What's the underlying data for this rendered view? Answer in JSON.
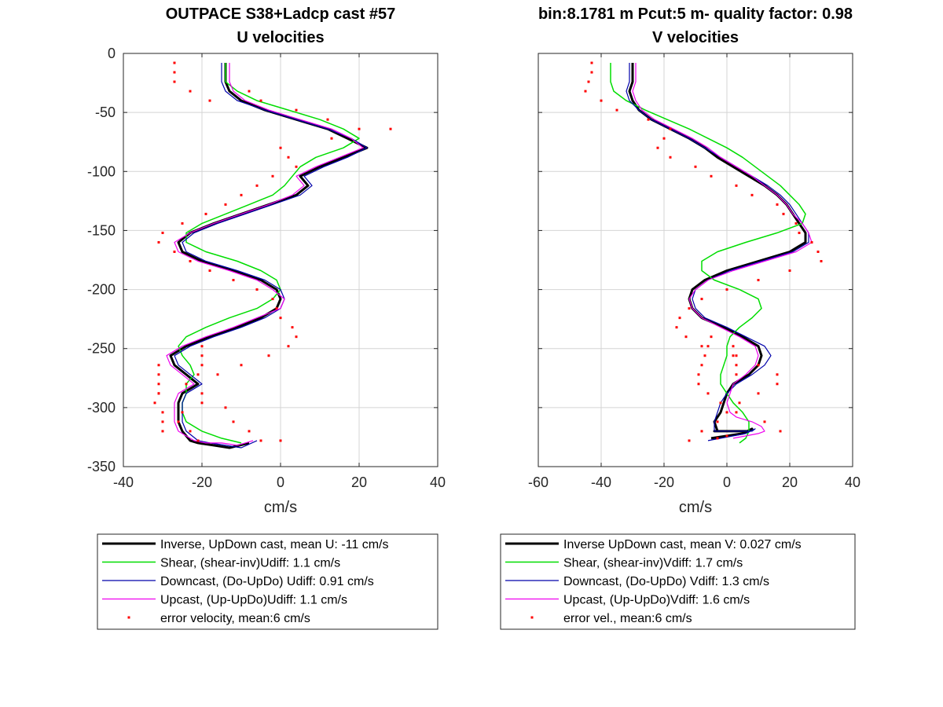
{
  "chart_data": [
    {
      "type": "line",
      "title": "OUTPACE S38+Ladcp cast #57",
      "subtitle": "U velocities",
      "xlabel": "cm/s",
      "ylabel": "",
      "xlim": [
        -40,
        40
      ],
      "ylim": [
        -350,
        0
      ],
      "xticks": [
        -40,
        -20,
        0,
        20,
        40
      ],
      "yticks": [
        0,
        -50,
        -100,
        -150,
        -200,
        -250,
        -300,
        -350
      ],
      "grid": true,
      "legend_position": "bottom",
      "series": [
        {
          "name": "Inverse, UpDown cast, mean U:  -11 cm/s",
          "color": "#000000",
          "width": 3,
          "x": [
            -14,
            -14,
            -14,
            -13,
            -10,
            -4,
            4,
            12,
            17,
            22,
            16,
            10,
            5,
            7,
            4,
            -3,
            -10,
            -17,
            -23,
            -26,
            -25,
            -20,
            -12,
            -5,
            -1,
            0,
            -1,
            -5,
            -11,
            -18,
            -24,
            -28,
            -27,
            -24,
            -21,
            -25,
            -26,
            -26,
            -26,
            -25,
            -23,
            -21,
            -17,
            -13,
            -8
          ],
          "y": [
            -8,
            -16,
            -24,
            -32,
            -40,
            -48,
            -56,
            -64,
            -72,
            -80,
            -88,
            -96,
            -104,
            -112,
            -120,
            -128,
            -136,
            -144,
            -152,
            -160,
            -168,
            -176,
            -184,
            -192,
            -200,
            -208,
            -216,
            -224,
            -232,
            -240,
            -248,
            -256,
            -264,
            -272,
            -280,
            -288,
            -296,
            -304,
            -312,
            -320,
            -328,
            -330,
            -332,
            -334,
            -330
          ]
        },
        {
          "name": "Shear, (shear-inv)Udiff:  1.1 cm/s",
          "color": "#00dd00",
          "width": 1.5,
          "x": [
            -14,
            -14,
            -14,
            -11,
            -6,
            2,
            10,
            16,
            20,
            16,
            9,
            5,
            3,
            1,
            -2,
            -8,
            -14,
            -20,
            -24,
            -24,
            -19,
            -11,
            -5,
            -1,
            0,
            -2,
            -6,
            -13,
            -19,
            -24,
            -26,
            -25,
            -23,
            -22,
            -24,
            -24,
            -25,
            -25,
            -24,
            -20,
            -15,
            -10
          ],
          "y": [
            -8,
            -16,
            -24,
            -32,
            -40,
            -48,
            -56,
            -64,
            -72,
            -80,
            -88,
            -96,
            -104,
            -112,
            -120,
            -128,
            -136,
            -144,
            -152,
            -160,
            -168,
            -176,
            -184,
            -192,
            -200,
            -208,
            -216,
            -224,
            -232,
            -240,
            -248,
            -256,
            -264,
            -272,
            -280,
            -288,
            -296,
            -304,
            -312,
            -320,
            -326,
            -330
          ]
        },
        {
          "name": "Downcast, (Do-UpDo) Udiff:  0.91 cm/s",
          "color": "#0000aa",
          "width": 1.2,
          "x": [
            -15,
            -15,
            -15,
            -14,
            -11,
            -4,
            4,
            12,
            18,
            22,
            17,
            11,
            6,
            8,
            5,
            -2,
            -9,
            -16,
            -22,
            -25,
            -24,
            -19,
            -11,
            -4,
            0,
            1,
            0,
            -4,
            -10,
            -17,
            -23,
            -27,
            -26,
            -23,
            -20,
            -24,
            -25,
            -25,
            -25,
            -24,
            -21,
            -18,
            -14,
            -10,
            -6
          ],
          "y": [
            -8,
            -16,
            -24,
            -32,
            -40,
            -48,
            -56,
            -64,
            -72,
            -80,
            -88,
            -96,
            -104,
            -112,
            -120,
            -128,
            -136,
            -144,
            -152,
            -160,
            -168,
            -176,
            -184,
            -192,
            -200,
            -208,
            -216,
            -224,
            -232,
            -240,
            -248,
            -256,
            -264,
            -272,
            -280,
            -288,
            -296,
            -304,
            -312,
            -320,
            -328,
            -330,
            -332,
            -334,
            -328
          ]
        },
        {
          "name": "Upcast, (Up-UpDo)Udiff:  1.1 cm/s",
          "color": "#ee00ee",
          "width": 1.2,
          "x": [
            -13,
            -13,
            -13,
            -12,
            -9,
            -3,
            5,
            13,
            18,
            21,
            15,
            9,
            4,
            6,
            3,
            -3,
            -10,
            -17,
            -23,
            -27,
            -26,
            -21,
            -13,
            -6,
            -2,
            1,
            0,
            -6,
            -12,
            -19,
            -25,
            -29,
            -28,
            -25,
            -22,
            -26,
            -27,
            -27,
            -27,
            -26,
            -22,
            -19,
            -15,
            -11,
            -7
          ],
          "y": [
            -8,
            -16,
            -24,
            -32,
            -40,
            -48,
            -56,
            -64,
            -72,
            -80,
            -88,
            -96,
            -104,
            -112,
            -120,
            -128,
            -136,
            -144,
            -152,
            -160,
            -168,
            -176,
            -184,
            -192,
            -200,
            -208,
            -216,
            -224,
            -232,
            -240,
            -248,
            -256,
            -264,
            -272,
            -280,
            -288,
            -296,
            -304,
            -312,
            -320,
            -328,
            -330,
            -330,
            -332,
            -328
          ]
        },
        {
          "name": "error velocity, mean:6 cm/s",
          "color": "#ff0000",
          "marker": "dot",
          "x": [
            -27,
            -27,
            -27,
            -23,
            -18,
            -8,
            -5,
            4,
            12,
            20,
            28,
            13,
            0,
            2,
            4,
            -2,
            -6,
            -10,
            -14,
            -19,
            -25,
            -30,
            -31,
            -27,
            -23,
            -18,
            -12,
            -6,
            -2,
            -1,
            0,
            3,
            4,
            2,
            -3,
            -10,
            -16,
            -24,
            -31,
            -32,
            -30,
            -26,
            -23,
            -21,
            -20,
            -20,
            -20,
            -21,
            -31,
            -31,
            -31,
            -31,
            -20,
            -20,
            -25,
            -30,
            -30,
            -14,
            -12,
            -8,
            -5,
            0
          ],
          "y": [
            -8,
            -16,
            -24,
            -32,
            -40,
            -32,
            -40,
            -48,
            -56,
            -64,
            -64,
            -72,
            -80,
            -88,
            -96,
            -104,
            -112,
            -120,
            -128,
            -136,
            -144,
            -152,
            -160,
            -168,
            -176,
            -184,
            -192,
            -200,
            -208,
            -216,
            -224,
            -232,
            -240,
            -248,
            -256,
            -264,
            -272,
            -280,
            -288,
            -296,
            -304,
            -312,
            -320,
            -328,
            -248,
            -256,
            -264,
            -272,
            -264,
            -272,
            -280,
            -288,
            -288,
            -296,
            -304,
            -312,
            -320,
            -300,
            -312,
            -320,
            -328,
            -328
          ]
        }
      ]
    },
    {
      "type": "line",
      "title": "bin:8.1781 m  Pcut:5 m- quality factor:  0.98",
      "subtitle": "V velocities",
      "xlabel": "cm/s",
      "ylabel": "",
      "xlim": [
        -60,
        40
      ],
      "ylim": [
        -350,
        0
      ],
      "xticks": [
        -60,
        -40,
        -20,
        0,
        20,
        40
      ],
      "yticks": [
        0,
        -50,
        -100,
        -150,
        -200,
        -250,
        -300,
        -350
      ],
      "grid": true,
      "legend_position": "bottom",
      "series": [
        {
          "name": "Inverse UpDown cast, mean V:  0.027 cm/s",
          "color": "#000000",
          "width": 3,
          "x": [
            -30,
            -30,
            -30,
            -31,
            -30,
            -28,
            -24,
            -18,
            -12,
            -7,
            -3,
            2,
            7,
            12,
            16,
            19,
            21,
            23,
            25,
            25,
            20,
            10,
            0,
            -7,
            -11,
            -12,
            -11,
            -8,
            -1,
            5,
            10,
            11,
            10,
            7,
            2,
            0,
            -1,
            -2,
            -4,
            -3,
            -3,
            -3,
            -4,
            -3,
            -2,
            1,
            4,
            7,
            8,
            5,
            0,
            -5
          ],
          "y": [
            -8,
            -16,
            -24,
            -32,
            -40,
            -48,
            -56,
            -64,
            -72,
            -80,
            -88,
            -96,
            -104,
            -112,
            -120,
            -128,
            -136,
            -144,
            -152,
            -160,
            -168,
            -176,
            -184,
            -192,
            -200,
            -208,
            -216,
            -224,
            -232,
            -240,
            -248,
            -256,
            -264,
            -272,
            -280,
            -288,
            -296,
            -304,
            -312,
            -320,
            -320,
            -320,
            -320,
            -320,
            -320,
            -320,
            -320,
            -320,
            -318,
            -322,
            -324,
            -326
          ]
        },
        {
          "name": "Shear, (shear-inv)Vdiff:  1.7 cm/s",
          "color": "#00dd00",
          "width": 1.5,
          "x": [
            -37,
            -37,
            -37,
            -36,
            -32,
            -26,
            -19,
            -12,
            -6,
            0,
            5,
            9,
            13,
            17,
            20,
            23,
            25,
            24,
            16,
            6,
            -3,
            -8,
            -8,
            -4,
            4,
            10,
            11,
            8,
            4,
            1,
            0,
            0,
            -1,
            -2,
            -2,
            0,
            2,
            5,
            7,
            7,
            6,
            4
          ],
          "y": [
            -8,
            -16,
            -24,
            -32,
            -40,
            -48,
            -56,
            -64,
            -72,
            -80,
            -88,
            -96,
            -104,
            -112,
            -120,
            -128,
            -136,
            -144,
            -152,
            -160,
            -168,
            -176,
            -184,
            -192,
            -200,
            -208,
            -216,
            -224,
            -232,
            -240,
            -248,
            -256,
            -264,
            -272,
            -280,
            -288,
            -296,
            -304,
            -312,
            -320,
            -326,
            -330
          ]
        },
        {
          "name": "Downcast, (Do-UpDo) Vdiff:  1.3 cm/s",
          "color": "#0000aa",
          "width": 1.2,
          "x": [
            -31,
            -31,
            -31,
            -32,
            -31,
            -28,
            -24,
            -18,
            -12,
            -7,
            -2,
            3,
            8,
            13,
            17,
            20,
            22,
            24,
            26,
            26,
            21,
            11,
            1,
            -6,
            -10,
            -11,
            -10,
            -7,
            0,
            6,
            12,
            14,
            12,
            8,
            3,
            0,
            -2,
            -3,
            -4,
            -4,
            -4,
            -3,
            -1,
            2,
            5,
            8,
            9,
            6,
            0,
            -6
          ],
          "y": [
            -8,
            -16,
            -24,
            -32,
            -40,
            -48,
            -56,
            -64,
            -72,
            -80,
            -88,
            -96,
            -104,
            -112,
            -120,
            -128,
            -136,
            -144,
            -152,
            -160,
            -168,
            -176,
            -184,
            -192,
            -200,
            -208,
            -216,
            -224,
            -232,
            -240,
            -248,
            -256,
            -264,
            -272,
            -280,
            -288,
            -296,
            -304,
            -312,
            -320,
            -320,
            -320,
            -320,
            -320,
            -320,
            -320,
            -318,
            -322,
            -325,
            -328
          ]
        },
        {
          "name": "Upcast, (Up-UpDo)Vdiff:  1.6 cm/s",
          "color": "#ee00ee",
          "width": 1.2,
          "x": [
            -29,
            -29,
            -29,
            -30,
            -29,
            -27,
            -23,
            -17,
            -11,
            -6,
            -2,
            3,
            8,
            12,
            16,
            19,
            21,
            24,
            26,
            27,
            22,
            12,
            2,
            -6,
            -10,
            -12,
            -11,
            -8,
            -2,
            4,
            9,
            10,
            9,
            6,
            2,
            1,
            0,
            1,
            3,
            8,
            11,
            12,
            10,
            6,
            2
          ],
          "y": [
            -8,
            -16,
            -24,
            -32,
            -40,
            -48,
            -56,
            -64,
            -72,
            -80,
            -88,
            -96,
            -104,
            -112,
            -120,
            -128,
            -136,
            -144,
            -152,
            -160,
            -168,
            -176,
            -184,
            -192,
            -200,
            -208,
            -216,
            -224,
            -232,
            -240,
            -248,
            -256,
            -264,
            -272,
            -280,
            -288,
            -296,
            -304,
            -308,
            -312,
            -316,
            -320,
            -322,
            -324,
            -326
          ]
        },
        {
          "name": "error vel., mean:6 cm/s",
          "color": "#ff0000",
          "marker": "dot",
          "x": [
            -43,
            -43,
            -44,
            -45,
            -40,
            -35,
            -25,
            -18,
            -20,
            -22,
            -18,
            -10,
            -5,
            3,
            8,
            16,
            18,
            22,
            23,
            27,
            29,
            30,
            20,
            10,
            0,
            -8,
            -12,
            -15,
            -16,
            -13,
            -8,
            2,
            10,
            16,
            16,
            10,
            4,
            0,
            -3,
            -5,
            -6,
            -7,
            -8,
            -9,
            -9,
            -6,
            -2,
            3,
            12,
            17,
            -8,
            -12,
            -3,
            0,
            2,
            3,
            3,
            3
          ],
          "y": [
            -8,
            -16,
            -24,
            -32,
            -40,
            -48,
            -56,
            -64,
            -72,
            -80,
            -88,
            -96,
            -104,
            -112,
            -120,
            -128,
            -136,
            -144,
            -152,
            -160,
            -168,
            -176,
            -184,
            -192,
            -200,
            -208,
            -216,
            -224,
            -232,
            -240,
            -248,
            -256,
            -264,
            -272,
            -280,
            -288,
            -296,
            -304,
            -312,
            -240,
            -248,
            -256,
            -264,
            -272,
            -280,
            -288,
            -296,
            -304,
            -312,
            -320,
            -320,
            -328,
            -326,
            -324,
            -248,
            -256,
            -264,
            -272
          ]
        }
      ]
    }
  ]
}
